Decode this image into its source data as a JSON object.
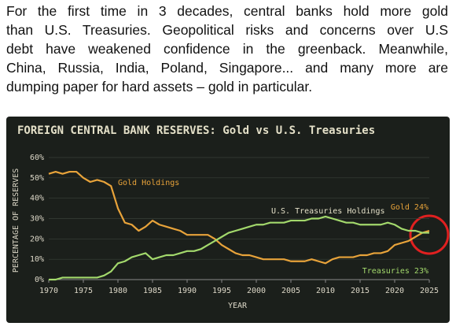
{
  "paragraph_lines": [
    "For the first time in 3 decades, central banks hold more gold",
    "than U.S. Treasuries. Geopolitical risks and concerns over U.S",
    "debt have weakened confidence in the greenback. Meanwhile,",
    "China, Russia, India, Poland, Singapore... and many more are",
    "dumping paper for hard assets – gold in particular."
  ],
  "chart_data": {
    "type": "line",
    "title": "FOREIGN CENTRAL BANK RESERVES: Gold vs U.S. Treasuries",
    "x_label": "YEAR",
    "y_label": "PERCENTAGE OF RESERVES",
    "x": [
      1970,
      1971,
      1972,
      1973,
      1974,
      1975,
      1976,
      1977,
      1978,
      1979,
      1980,
      1981,
      1982,
      1983,
      1984,
      1985,
      1986,
      1987,
      1988,
      1989,
      1990,
      1991,
      1992,
      1993,
      1994,
      1995,
      1996,
      1997,
      1998,
      1999,
      2000,
      2001,
      2002,
      2003,
      2004,
      2005,
      2006,
      2007,
      2008,
      2009,
      2010,
      2011,
      2012,
      2013,
      2014,
      2015,
      2016,
      2017,
      2018,
      2019,
      2020,
      2021,
      2022,
      2023,
      2024,
      2025
    ],
    "series": [
      {
        "name": "Gold Holdings",
        "color": "#e8a33a",
        "values": [
          52,
          53,
          52,
          53,
          53,
          50,
          48,
          49,
          48,
          46,
          35,
          28,
          27,
          24,
          26,
          29,
          27,
          26,
          25,
          24,
          22,
          22,
          22,
          22,
          20,
          17,
          15,
          13,
          12,
          12,
          11,
          10,
          10,
          10,
          10,
          9,
          9,
          9,
          10,
          9,
          8,
          10,
          11,
          11,
          11,
          12,
          12,
          13,
          13,
          14,
          17,
          18,
          19,
          21,
          23,
          24
        ]
      },
      {
        "name": "U.S. Treasuries Holdings",
        "color": "#a3d96c",
        "values": [
          0,
          0,
          1,
          1,
          1,
          1,
          1,
          1,
          2,
          4,
          8,
          9,
          11,
          12,
          13,
          10,
          11,
          12,
          12,
          13,
          14,
          14,
          15,
          17,
          19,
          21,
          23,
          24,
          25,
          26,
          27,
          27,
          28,
          28,
          28,
          29,
          29,
          29,
          30,
          30,
          31,
          30,
          29,
          28,
          28,
          27,
          27,
          27,
          27,
          28,
          27,
          25,
          24,
          24,
          23,
          23
        ]
      }
    ],
    "annotations": [
      {
        "text": "Gold 24%",
        "color": "#e8a33a"
      },
      {
        "text": "Treasuries 23%",
        "color": "#a3d96c"
      }
    ],
    "xlim": [
      1970,
      2025
    ],
    "xticks": [
      1970,
      1975,
      1980,
      1985,
      1990,
      1995,
      2000,
      2005,
      2010,
      2015,
      2020,
      2025
    ],
    "ylim": [
      0,
      60
    ],
    "yticks": [
      {
        "value": 0,
        "label": "0%"
      },
      {
        "value": 10,
        "label": "10%"
      },
      {
        "value": 20,
        "label": "20%"
      },
      {
        "value": 30,
        "label": "30%"
      },
      {
        "value": 40,
        "label": "40%"
      },
      {
        "value": 50,
        "label": "50%"
      },
      {
        "value": 60,
        "label": "60%"
      }
    ],
    "grid": true
  }
}
